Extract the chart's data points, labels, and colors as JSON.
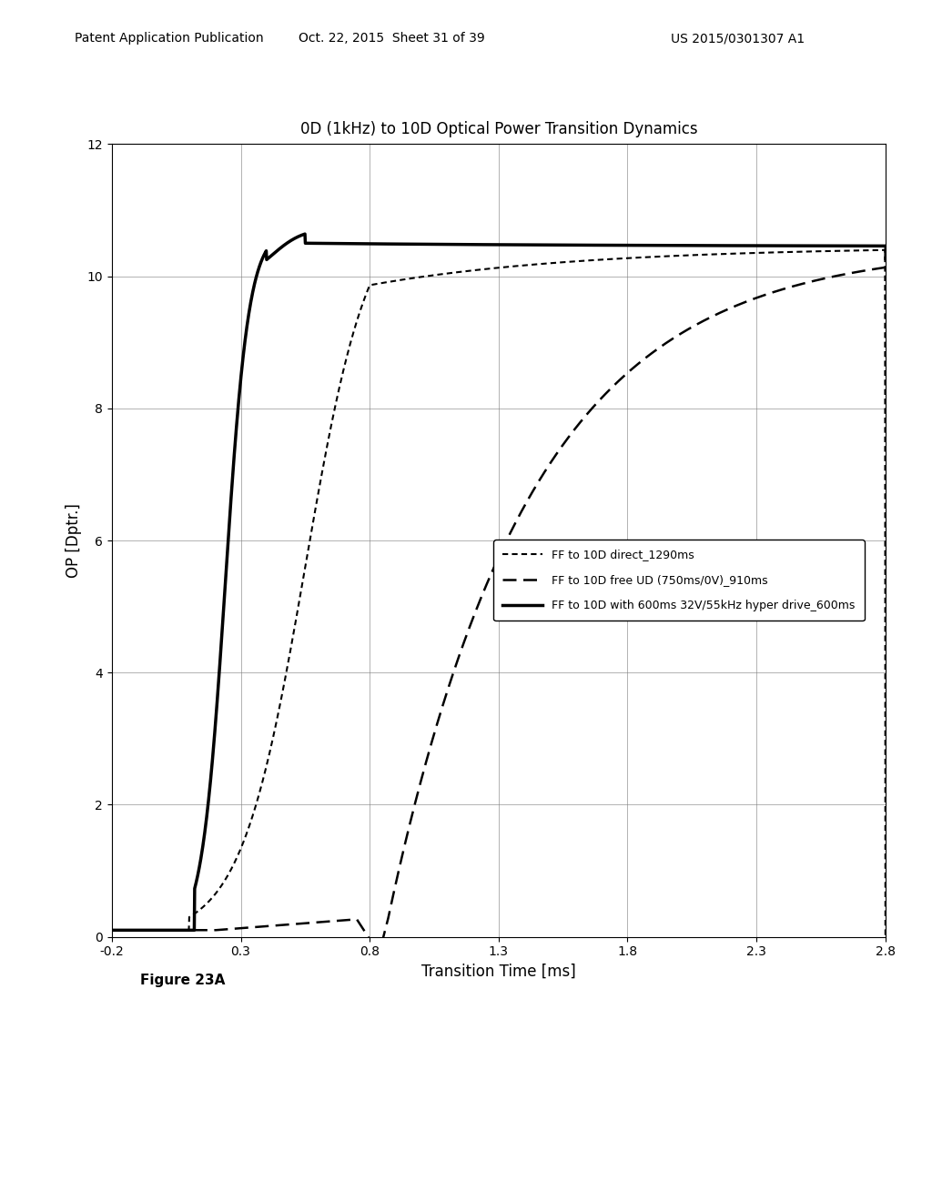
{
  "title": "0D (1kHz) to 10D Optical Power Transition Dynamics",
  "xlabel": "Transition Time [ms]",
  "ylabel": "OP [Dptr.]",
  "xlim": [
    -0.2,
    2.8
  ],
  "ylim": [
    0,
    12
  ],
  "xticks": [
    -0.2,
    0.3,
    0.8,
    1.3,
    1.8,
    2.3,
    2.8
  ],
  "yticks": [
    0,
    2,
    4,
    6,
    8,
    10,
    12
  ],
  "legend": [
    {
      "label": "FF to 10D direct_1290ms",
      "linestyle": "densely dashed",
      "color": "#000000"
    },
    {
      "label": "FF to 10D free UD (750ms/0V)_910ms",
      "linestyle": "dashed",
      "color": "#000000"
    },
    {
      "label": "FF to 10D with 600ms 32V/55kHz hyper drive_600ms",
      "linestyle": "solid",
      "color": "#000000"
    }
  ],
  "background_color": "#ffffff",
  "figure_caption": "Figure 23A"
}
